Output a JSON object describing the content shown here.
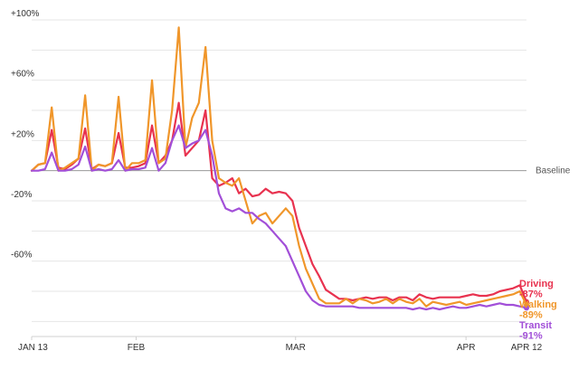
{
  "chart_data": {
    "type": "line",
    "title": "",
    "xlabel": "",
    "ylabel": "",
    "ylim": [
      -110,
      100
    ],
    "xlim": [
      "2020-01-13",
      "2020-04-12"
    ],
    "x_ticks": [
      {
        "date": "2020-01-13",
        "label": "JAN 13"
      },
      {
        "date": "2020-02-01",
        "label": "FEB"
      },
      {
        "date": "2020-03-01",
        "label": "MAR"
      },
      {
        "date": "2020-04-01",
        "label": "APR"
      },
      {
        "date": "2020-04-12",
        "label": "APR 12"
      }
    ],
    "y_ticks": [
      {
        "value": 100,
        "label": "+100%"
      },
      {
        "value": 60,
        "label": "+60%"
      },
      {
        "value": 20,
        "label": "+20%"
      },
      {
        "value": -20,
        "label": "-20%"
      },
      {
        "value": -60,
        "label": "-60%"
      }
    ],
    "baseline": {
      "value": 0,
      "label": "Baseline"
    },
    "grid": true,
    "x_start": "2020-01-13",
    "series": [
      {
        "name": "Driving",
        "end_value_label": "-87%",
        "color": "#e8324f",
        "values": [
          0,
          4,
          5,
          27,
          2,
          1,
          4,
          8,
          28,
          1,
          4,
          3,
          5,
          25,
          2,
          2,
          3,
          5,
          30,
          5,
          10,
          20,
          45,
          10,
          15,
          20,
          40,
          -5,
          -10,
          -8,
          -5,
          -15,
          -12,
          -17,
          -16,
          -12,
          -15,
          -14,
          -15,
          -20,
          -38,
          -50,
          -62,
          -70,
          -79,
          -82,
          -85,
          -85,
          -86,
          -85,
          -84,
          -85,
          -84,
          -84,
          -86,
          -84,
          -84,
          -86,
          -82,
          -84,
          -85,
          -84,
          -84,
          -84,
          -84,
          -83,
          -82,
          -83,
          -83,
          -82,
          -80,
          -79,
          -78,
          -76,
          -87
        ]
      },
      {
        "name": "Walking",
        "end_value_label": "-89%",
        "color": "#f0962a",
        "values": [
          0,
          4,
          5,
          42,
          0,
          2,
          5,
          8,
          50,
          0,
          4,
          3,
          5,
          49,
          0,
          5,
          5,
          7,
          60,
          5,
          8,
          40,
          95,
          15,
          35,
          45,
          82,
          20,
          -5,
          -8,
          -10,
          -5,
          -20,
          -35,
          -30,
          -28,
          -35,
          -30,
          -25,
          -30,
          -50,
          -65,
          -75,
          -85,
          -88,
          -88,
          -88,
          -85,
          -88,
          -85,
          -86,
          -88,
          -87,
          -85,
          -88,
          -85,
          -87,
          -88,
          -85,
          -90,
          -87,
          -88,
          -89,
          -88,
          -87,
          -89,
          -88,
          -87,
          -86,
          -85,
          -84,
          -83,
          -82,
          -80,
          -89
        ]
      },
      {
        "name": "Transit",
        "end_value_label": "-91%",
        "color": "#a24fd8",
        "values": [
          0,
          0,
          1,
          12,
          0,
          0,
          1,
          4,
          16,
          0,
          1,
          0,
          1,
          7,
          0,
          1,
          1,
          2,
          15,
          0,
          5,
          20,
          30,
          15,
          18,
          20,
          27,
          10,
          -15,
          -25,
          -27,
          -25,
          -28,
          -28,
          -32,
          -35,
          -40,
          -45,
          -50,
          -60,
          -70,
          -80,
          -86,
          -89,
          -90,
          -90,
          -90,
          -90,
          -90,
          -91,
          -91,
          -91,
          -91,
          -91,
          -91,
          -91,
          -91,
          -92,
          -91,
          -92,
          -91,
          -92,
          -91,
          -90,
          -91,
          -91,
          -90,
          -89,
          -90,
          -89,
          -88,
          -89,
          -89,
          -90,
          -91
        ]
      }
    ]
  }
}
